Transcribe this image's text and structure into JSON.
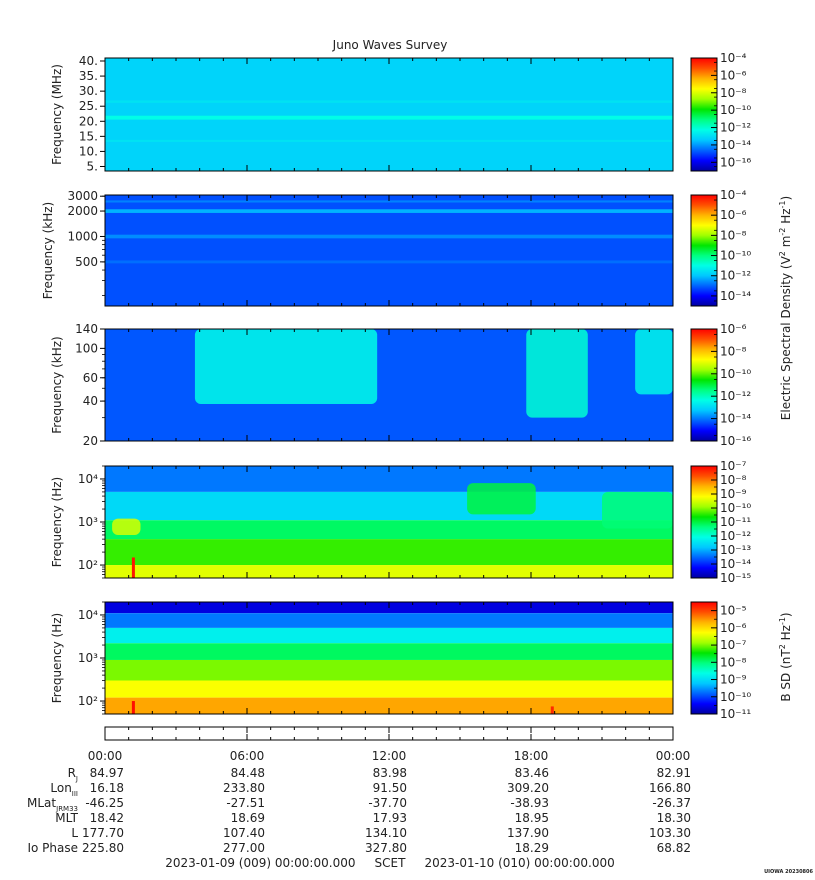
{
  "title": "Juno Waves Survey",
  "colors": {
    "ramp": [
      "#0000a0",
      "#0000ff",
      "#0064ff",
      "#00c8ff",
      "#00ffe6",
      "#00ff80",
      "#00e600",
      "#a0ff00",
      "#ffff00",
      "#ffb400",
      "#ff5000",
      "#ff0000"
    ]
  },
  "chart_data": [
    {
      "type": "heatmap",
      "panel": "hfr-high",
      "ylabel": "Frequency (MHz)",
      "y_scale": "linear",
      "ylim": [
        3.5,
        41
      ],
      "yticks": [
        5,
        10,
        15,
        20,
        25,
        30,
        35,
        40
      ],
      "ytick_labels": [
        "5.",
        "10.",
        "15.",
        "20.",
        "25.",
        "30.",
        "35.",
        "40."
      ],
      "xlim_hours": [
        0,
        24
      ],
      "background_exponent": -13.2,
      "features": [
        {
          "kind": "band",
          "center": 21.2,
          "width": 1.3,
          "exponent": -12.3
        },
        {
          "kind": "band",
          "center": 26.5,
          "width": 0.8,
          "exponent": -12.9
        },
        {
          "kind": "band",
          "center": 13.5,
          "width": 0.7,
          "exponent": -12.9
        }
      ],
      "colorbar": {
        "min_exp": -17,
        "max_exp": -4,
        "tick_exps": [
          -16,
          -14,
          -12,
          -10,
          -8,
          -6,
          -4
        ]
      }
    },
    {
      "type": "heatmap",
      "panel": "hfr-low",
      "ylabel": "Frequency (kHz)",
      "y_scale": "log",
      "ylim": [
        150,
        3100
      ],
      "yticks": [
        500,
        1000,
        2000,
        3000
      ],
      "ytick_labels": [
        "500",
        "1000",
        "2000",
        "3000"
      ],
      "xlim_hours": [
        0,
        24
      ],
      "background_exponent": -13.2,
      "features": [
        {
          "kind": "band",
          "center": 2000,
          "width": 200,
          "exponent": -12.2
        },
        {
          "kind": "band",
          "center": 2600,
          "width": 150,
          "exponent": -12.7
        },
        {
          "kind": "band",
          "center": 1000,
          "width": 100,
          "exponent": -12.6
        },
        {
          "kind": "band",
          "center": 500,
          "width": 40,
          "exponent": -12.9
        }
      ],
      "colorbar": {
        "min_exp": -15,
        "max_exp": -4,
        "tick_exps": [
          -14,
          -12,
          -10,
          -8,
          -6,
          -4
        ]
      }
    },
    {
      "type": "heatmap",
      "panel": "lfr-high",
      "ylabel": "Frequency (kHz)",
      "y_scale": "log",
      "ylim": [
        20,
        140
      ],
      "yticks": [
        20,
        40,
        60,
        100,
        140
      ],
      "ytick_labels": [
        "20",
        "40",
        "60",
        "100",
        "140"
      ],
      "xlim_hours": [
        0,
        24
      ],
      "background_exponent": -14.3,
      "features": [
        {
          "kind": "patch",
          "t0": 3.8,
          "t1": 11.5,
          "f0": 38,
          "f1": 140,
          "exponent": -12.4
        },
        {
          "kind": "patch",
          "t0": 17.8,
          "t1": 20.4,
          "f0": 30,
          "f1": 140,
          "exponent": -12.2
        },
        {
          "kind": "patch",
          "t0": 22.4,
          "t1": 24,
          "f0": 45,
          "f1": 140,
          "exponent": -12.5
        }
      ],
      "colorbar": {
        "min_exp": -16,
        "max_exp": -6,
        "tick_exps": [
          -16,
          -14,
          -12,
          -10,
          -8,
          -6
        ]
      }
    },
    {
      "type": "heatmap",
      "panel": "lfr-low",
      "ylabel": "Frequency (Hz)",
      "y_scale": "log",
      "ylim": [
        50,
        20000
      ],
      "yticks": [
        100,
        1000,
        10000
      ],
      "ytick_labels": [
        "10²",
        "10³",
        "10⁴"
      ],
      "xlim_hours": [
        0,
        24
      ],
      "layers": [
        {
          "f0": 5000,
          "f1": 20000,
          "exponent": -13.4
        },
        {
          "f0": 1100,
          "f1": 5000,
          "exponent": -12.6
        },
        {
          "f0": 400,
          "f1": 1100,
          "exponent": -11.2
        },
        {
          "f0": 100,
          "f1": 400,
          "exponent": -10.4
        },
        {
          "f0": 50,
          "f1": 100,
          "exponent": -9.4
        }
      ],
      "features": [
        {
          "kind": "patch",
          "t0": 0.3,
          "t1": 1.5,
          "f0": 500,
          "f1": 1200,
          "exponent": -9.5
        },
        {
          "kind": "patch",
          "t0": 15.3,
          "t1": 18.2,
          "f0": 1500,
          "f1": 8000,
          "exponent": -11.0
        },
        {
          "kind": "patch",
          "t0": 21.0,
          "t1": 24,
          "f0": 700,
          "f1": 5000,
          "exponent": -11.3
        },
        {
          "kind": "spike",
          "t": 1.2,
          "f0": 50,
          "f1": 150,
          "exponent": -7.2
        }
      ],
      "colorbar": {
        "min_exp": -15,
        "max_exp": -7,
        "tick_exps": [
          -15,
          -14,
          -13,
          -12,
          -11,
          -10,
          -9,
          -8,
          -7
        ]
      }
    },
    {
      "type": "heatmap",
      "panel": "magnetic",
      "ylabel": "Frequency (Hz)",
      "y_scale": "log",
      "ylim": [
        50,
        20000
      ],
      "yticks": [
        100,
        1000,
        10000
      ],
      "ytick_labels": [
        "10²",
        "10³",
        "10⁴"
      ],
      "xlim_hours": [
        0,
        24
      ],
      "layers": [
        {
          "f0": 11000,
          "f1": 20000,
          "exponent": -10.6
        },
        {
          "f0": 5000,
          "f1": 11000,
          "exponent": -9.7
        },
        {
          "f0": 2200,
          "f1": 5000,
          "exponent": -8.8
        },
        {
          "f0": 900,
          "f1": 2200,
          "exponent": -7.9
        },
        {
          "f0": 300,
          "f1": 900,
          "exponent": -7.0
        },
        {
          "f0": 120,
          "f1": 300,
          "exponent": -6.3
        },
        {
          "f0": 50,
          "f1": 120,
          "exponent": -5.6
        }
      ],
      "features": [
        {
          "kind": "spike",
          "t": 1.2,
          "f0": 50,
          "f1": 100,
          "exponent": -4.6
        },
        {
          "kind": "spike",
          "t": 18.9,
          "f0": 50,
          "f1": 75,
          "exponent": -4.8
        }
      ],
      "colorbar": {
        "min_exp": -11,
        "max_exp": -4.5,
        "tick_exps": [
          -11,
          -10,
          -9,
          -8,
          -7,
          -6,
          -5
        ]
      }
    }
  ],
  "colorbar_label_electric": {
    "prefix": "Electric Spectral Density (V",
    "sup1": "2",
    "mid": " m",
    "sup2": "-2",
    "mid2": " Hz",
    "sup3": "-1",
    "suffix": ")"
  },
  "colorbar_label_magnetic": {
    "prefix": "B SD (nT",
    "sup1": "2",
    "mid": " Hz",
    "sup2": "-1",
    "suffix": ")"
  },
  "ephemeris": {
    "times": [
      "00:00",
      "06:00",
      "12:00",
      "18:00",
      "00:00"
    ],
    "rows": [
      {
        "label": "R",
        "sub": "J",
        "values": [
          "84.97",
          "84.48",
          "83.98",
          "83.46",
          "82.91"
        ]
      },
      {
        "label": "Lon",
        "sub": "III",
        "values": [
          "16.18",
          "233.80",
          "91.50",
          "309.20",
          "166.80"
        ]
      },
      {
        "label": "MLat",
        "sub": "JRM33",
        "values": [
          "-46.25",
          "-27.51",
          "-37.70",
          "-38.93",
          "-26.37"
        ]
      },
      {
        "label": "MLT",
        "sub": "",
        "values": [
          "18.42",
          "18.69",
          "17.93",
          "18.95",
          "18.30"
        ]
      },
      {
        "label": "L",
        "sub": "",
        "values": [
          "177.70",
          "107.40",
          "134.10",
          "137.90",
          "103.30"
        ]
      },
      {
        "label": "Io Phase",
        "sub": "",
        "values": [
          "225.80",
          "277.00",
          "327.80",
          "18.29",
          "68.82"
        ]
      }
    ],
    "footer": "2023-01-09 (009) 00:00:00.000     SCET     2023-01-10 (010) 00:00:00.000",
    "stamp": "UIOWA 20230806"
  }
}
